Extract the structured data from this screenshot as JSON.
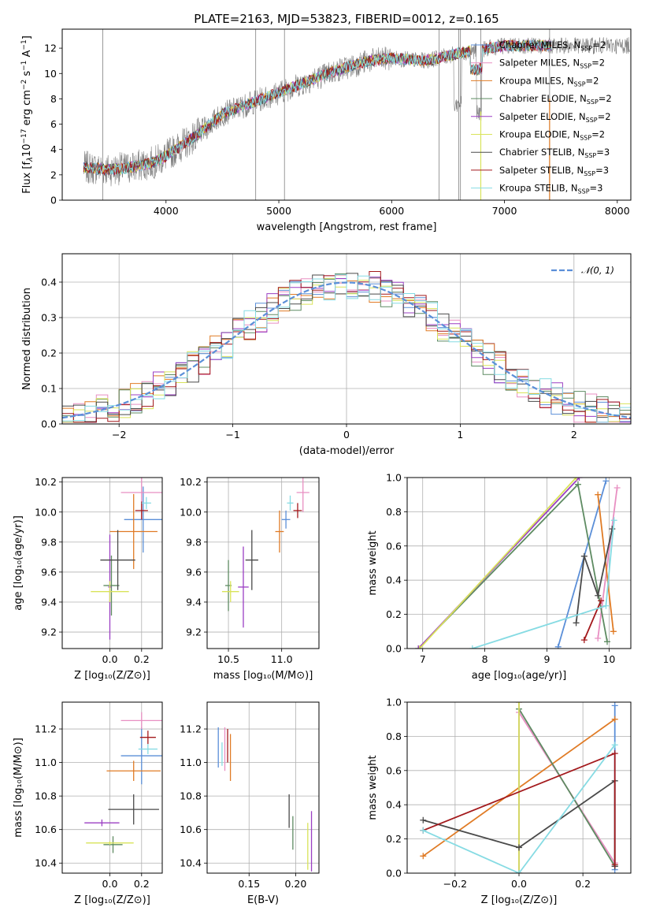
{
  "title": "PLATE=2163, MJD=53823, FIBERID=0012, z=0.165",
  "colors": {
    "Chabrier MILES": "#5b8fd8",
    "Salpeter MILES": "#e88fc2",
    "Kroupa MILES": "#e07b25",
    "Chabrier ELODIE": "#5e8b62",
    "Salpeter ELODIE": "#9b3fc3",
    "Kroupa ELODIE": "#d9e35a",
    "Chabrier STELIB": "#4a4a4a",
    "Salpeter STELIB": "#a3191c",
    "Kroupa STELIB": "#86dbe3",
    "data": "#808080",
    "normal": "#5b8fd8"
  },
  "chart_data": [
    {
      "type": "line",
      "name": "spectrum",
      "xlabel": "wavelength [Angstrom, rest frame]",
      "ylabel": "Flux [f",
      "ylabel_parts": [
        "λ",
        "10",
        "−17",
        " erg cm",
        "−2",
        " s",
        "−1",
        " A",
        "−1",
        "]"
      ],
      "xlim": [
        3080,
        8120
      ],
      "ylim": [
        0,
        13.5
      ],
      "xticks": [
        "4000",
        "5000",
        "6000",
        "7000",
        "8000"
      ],
      "yticks": [
        "0",
        "2",
        "4",
        "6",
        "8",
        "10",
        "12"
      ],
      "legend": [
        {
          "base": "Chabrier MILES, N",
          "sub": "SSP",
          "tail": "=2"
        },
        {
          "base": "Salpeter MILES, N",
          "sub": "SSP",
          "tail": "=2"
        },
        {
          "base": "Kroupa MILES, N",
          "sub": "SSP",
          "tail": "=2"
        },
        {
          "base": "Chabrier ELODIE, N",
          "sub": "SSP",
          "tail": "=2"
        },
        {
          "base": "Salpeter ELODIE, N",
          "sub": "SSP",
          "tail": "=2"
        },
        {
          "base": "Kroupa ELODIE, N",
          "sub": "SSP",
          "tail": "=2"
        },
        {
          "base": "Chabrier STELIB, N",
          "sub": "SSP",
          "tail": "=3"
        },
        {
          "base": "Salpeter STELIB, N",
          "sub": "SSP",
          "tail": "=3"
        },
        {
          "base": "Kroupa STELIB, N",
          "sub": "SSP",
          "tail": "=3"
        }
      ],
      "legend_placement": "top-right",
      "continuum_x": [
        3270,
        3500,
        3700,
        3900,
        4000,
        4300,
        4500,
        5000,
        5500,
        5800,
        6000,
        6300,
        6600,
        7000,
        7400,
        7800,
        8100
      ],
      "continuum_y": [
        2.6,
        2.4,
        2.6,
        3.0,
        3.5,
        5.3,
        6.8,
        8.5,
        10.2,
        11.0,
        11.2,
        11.0,
        11.6,
        12.2,
        12.2,
        12.2,
        12.2
      ]
    },
    {
      "type": "histogram",
      "name": "residuals",
      "xlabel": "(data-model)/error",
      "ylabel": "Normed distribution",
      "xlim": [
        -2.5,
        2.5
      ],
      "ylim": [
        0,
        0.48
      ],
      "xticks": [
        "−2",
        "−1",
        "0",
        "1",
        "2"
      ],
      "yticks": [
        "0.0",
        "0.1",
        "0.2",
        "0.3",
        "0.4"
      ],
      "grid": true,
      "legend": [
        "𝒩(0, 1)"
      ],
      "legend_placement": "top-right",
      "bin_width": 0.1
    },
    {
      "type": "scatter",
      "name": "age-vs-Z",
      "xlabel": "Z [log₁₀(Z/Z⊙)]",
      "ylabel": "age  [log₁₀(age/yr)]",
      "xlim": [
        -0.3,
        0.33
      ],
      "ylim": [
        9.09,
        10.23
      ],
      "xticks": [
        "0.0",
        "0.2"
      ],
      "yticks": [
        "9.2",
        "9.4",
        "9.6",
        "9.8",
        "10.0",
        "10.2"
      ],
      "grid": true,
      "points": [
        {
          "series": "Chabrier MILES",
          "x": 0.21,
          "y": 9.95,
          "xerr": 0.12,
          "yerr": 0.22
        },
        {
          "series": "Salpeter MILES",
          "x": 0.2,
          "y": 10.13,
          "xerr": 0.13,
          "yerr": 0.18
        },
        {
          "series": "Kroupa MILES",
          "x": 0.15,
          "y": 9.87,
          "xerr": 0.15,
          "yerr": 0.25
        },
        {
          "series": "Chabrier ELODIE",
          "x": 0.01,
          "y": 9.51,
          "xerr": 0.05,
          "yerr": 0.2
        },
        {
          "series": "Salpeter ELODIE",
          "x": 0.0,
          "y": 9.5,
          "xerr": 0.01,
          "yerr": 0.35
        },
        {
          "series": "Kroupa ELODIE",
          "x": 0.0,
          "y": 9.47,
          "xerr": 0.12,
          "yerr": 0.07
        },
        {
          "series": "Chabrier STELIB",
          "x": 0.05,
          "y": 9.68,
          "xerr": 0.11,
          "yerr": 0.2
        },
        {
          "series": "Salpeter STELIB",
          "x": 0.2,
          "y": 10.01,
          "xerr": 0.04,
          "yerr": 0.06
        },
        {
          "series": "Kroupa STELIB",
          "x": 0.23,
          "y": 10.06,
          "xerr": 0.03,
          "yerr": 0.04
        }
      ]
    },
    {
      "type": "scatter",
      "name": "age-vs-mass",
      "xlabel": "mass [log₁₀(M/M⊙)]",
      "ylabel": "",
      "xlim": [
        10.3,
        11.35
      ],
      "ylim": [
        9.09,
        10.23
      ],
      "xticks": [
        "10.5",
        "11.0"
      ],
      "yticks": [
        "9.2",
        "9.4",
        "9.6",
        "9.8",
        "10.0",
        "10.2"
      ],
      "grid": true,
      "points": [
        {
          "series": "Chabrier MILES",
          "x": 11.04,
          "y": 9.95,
          "xerr": 0.04,
          "yerr": 0.06
        },
        {
          "series": "Salpeter MILES",
          "x": 11.2,
          "y": 10.13,
          "xerr": 0.06,
          "yerr": 0.13
        },
        {
          "series": "Kroupa MILES",
          "x": 10.98,
          "y": 9.87,
          "xerr": 0.04,
          "yerr": 0.14
        },
        {
          "series": "Chabrier ELODIE",
          "x": 10.5,
          "y": 9.51,
          "xerr": 0.03,
          "yerr": 0.17
        },
        {
          "series": "Salpeter ELODIE",
          "x": 10.64,
          "y": 9.5,
          "xerr": 0.05,
          "yerr": 0.27
        },
        {
          "series": "Kroupa ELODIE",
          "x": 10.52,
          "y": 9.47,
          "xerr": 0.08,
          "yerr": 0.07
        },
        {
          "series": "Chabrier STELIB",
          "x": 10.72,
          "y": 9.68,
          "xerr": 0.06,
          "yerr": 0.2
        },
        {
          "series": "Salpeter STELIB",
          "x": 11.15,
          "y": 10.01,
          "xerr": 0.04,
          "yerr": 0.05
        },
        {
          "series": "Kroupa STELIB",
          "x": 11.08,
          "y": 10.06,
          "xerr": 0.03,
          "yerr": 0.05
        }
      ]
    },
    {
      "type": "line",
      "name": "mass-weight-vs-age",
      "xlabel": "age  [log₁₀(age/yr)]",
      "ylabel": "mass weight",
      "xlim": [
        6.75,
        10.35
      ],
      "ylim": [
        0,
        1
      ],
      "xticks": [
        "7",
        "8",
        "9",
        "10"
      ],
      "yticks": [
        "0.0",
        "0.2",
        "0.4",
        "0.6",
        "0.8",
        "1.0"
      ],
      "grid": true,
      "series": [
        {
          "name": "Chabrier MILES",
          "x": [
            9.18,
            9.95
          ],
          "y": [
            0.01,
            0.98
          ]
        },
        {
          "name": "Salpeter MILES",
          "x": [
            9.82,
            10.13
          ],
          "y": [
            0.06,
            0.94
          ]
        },
        {
          "name": "Kroupa MILES",
          "x": [
            9.82,
            10.07
          ],
          "y": [
            0.9,
            0.1
          ]
        },
        {
          "name": "Chabrier ELODIE",
          "x": [
            6.93,
            9.5,
            9.97
          ],
          "y": [
            0.0,
            0.96,
            0.04
          ]
        },
        {
          "name": "Salpeter ELODIE",
          "x": [
            6.93,
            9.52
          ],
          "y": [
            0.0,
            1.0
          ]
        },
        {
          "name": "Kroupa ELODIE",
          "x": [
            6.95,
            9.47
          ],
          "y": [
            0.0,
            1.0
          ]
        },
        {
          "name": "Chabrier STELIB",
          "x": [
            9.47,
            9.6,
            9.82,
            10.05
          ],
          "y": [
            0.15,
            0.54,
            0.31,
            0.7
          ]
        },
        {
          "name": "Salpeter STELIB",
          "x": [
            9.6,
            9.87
          ],
          "y": [
            0.05,
            0.28
          ]
        },
        {
          "name": "Kroupa STELIB",
          "x": [
            7.8,
            9.95,
            10.08
          ],
          "y": [
            0.0,
            0.25,
            0.75
          ]
        }
      ]
    },
    {
      "type": "scatter",
      "name": "mass-vs-Z",
      "xlabel": "Z [log₁₀(Z/Z⊙)]",
      "ylabel": "mass [log₁₀(M/M⊙)]",
      "xlim": [
        -0.3,
        0.33
      ],
      "ylim": [
        10.34,
        11.36
      ],
      "xticks": [
        "0.0",
        "0.2"
      ],
      "yticks": [
        "10.4",
        "10.6",
        "10.8",
        "11.0",
        "11.2"
      ],
      "grid": true,
      "points": [
        {
          "series": "Chabrier MILES",
          "x": 0.2,
          "y": 11.04,
          "xerr": 0.13,
          "yerr": 0.17
        },
        {
          "series": "Salpeter MILES",
          "x": 0.2,
          "y": 11.25,
          "xerr": 0.13,
          "yerr": 0.05
        },
        {
          "series": "Kroupa MILES",
          "x": 0.15,
          "y": 10.95,
          "xerr": 0.17,
          "yerr": 0.06
        },
        {
          "series": "Chabrier ELODIE",
          "x": 0.02,
          "y": 10.51,
          "xerr": 0.06,
          "yerr": 0.05
        },
        {
          "series": "Salpeter ELODIE",
          "x": -0.05,
          "y": 10.64,
          "xerr": 0.11,
          "yerr": 0.02
        },
        {
          "series": "Kroupa ELODIE",
          "x": 0.0,
          "y": 10.52,
          "xerr": 0.15,
          "yerr": 0.01
        },
        {
          "series": "Chabrier STELIB",
          "x": 0.15,
          "y": 10.72,
          "xerr": 0.16,
          "yerr": 0.09
        },
        {
          "series": "Salpeter STELIB",
          "x": 0.24,
          "y": 11.15,
          "xerr": 0.05,
          "yerr": 0.04
        },
        {
          "series": "Kroupa STELIB",
          "x": 0.24,
          "y": 11.08,
          "xerr": 0.06,
          "yerr": 0.03
        }
      ]
    },
    {
      "type": "scatter",
      "name": "mass-vs-EBV",
      "xlabel": "E(B-V)",
      "ylabel": "",
      "xlim": [
        0.105,
        0.225
      ],
      "ylim": [
        10.34,
        11.36
      ],
      "xticks": [
        "0.15",
        "0.20"
      ],
      "yticks": [
        "10.4",
        "10.6",
        "10.8",
        "11.0",
        "11.2"
      ],
      "grid": true,
      "points": [
        {
          "series": "Chabrier MILES",
          "x": 0.117,
          "y": 11.09,
          "yerr": 0.12
        },
        {
          "series": "Salpeter MILES",
          "x": 0.124,
          "y": 11.08,
          "yerr": 0.13
        },
        {
          "series": "Kroupa MILES",
          "x": 0.13,
          "y": 11.03,
          "yerr": 0.14
        },
        {
          "series": "Chabrier ELODIE",
          "x": 0.197,
          "y": 10.58,
          "yerr": 0.1
        },
        {
          "series": "Salpeter ELODIE",
          "x": 0.217,
          "y": 10.53,
          "yerr": 0.18
        },
        {
          "series": "Kroupa ELODIE",
          "x": 0.213,
          "y": 10.5,
          "yerr": 0.14
        },
        {
          "series": "Chabrier STELIB",
          "x": 0.193,
          "y": 10.71,
          "yerr": 0.1
        },
        {
          "series": "Salpeter STELIB",
          "x": 0.127,
          "y": 11.1,
          "yerr": 0.1
        },
        {
          "series": "Kroupa STELIB",
          "x": 0.121,
          "y": 11.05,
          "yerr": 0.07
        }
      ]
    },
    {
      "type": "line",
      "name": "mass-weight-vs-Z",
      "xlabel": "Z [log₁₀(Z/Z⊙)]",
      "ylabel": "mass weight",
      "xlim": [
        -0.35,
        0.35
      ],
      "ylim": [
        0,
        1
      ],
      "xticks": [
        "−0.2",
        "0.0",
        "0.2"
      ],
      "yticks": [
        "0.0",
        "0.2",
        "0.4",
        "0.6",
        "0.8",
        "1.0"
      ],
      "grid": true,
      "series": [
        {
          "name": "Chabrier MILES",
          "x": [
            0.3,
            0.3
          ],
          "y": [
            0.02,
            0.98
          ]
        },
        {
          "name": "Salpeter MILES",
          "x": [
            0.0,
            0.3
          ],
          "y": [
            0.94,
            0.06
          ]
        },
        {
          "name": "Kroupa MILES",
          "x": [
            -0.3,
            0.3
          ],
          "y": [
            0.1,
            0.9
          ]
        },
        {
          "name": "Chabrier ELODIE",
          "x": [
            0.0,
            0.3
          ],
          "y": [
            0.96,
            0.04
          ]
        },
        {
          "name": "Salpeter ELODIE",
          "x": [
            0.0,
            0.0
          ],
          "y": [
            0.0,
            1.0
          ]
        },
        {
          "name": "Kroupa ELODIE",
          "x": [
            0.0,
            0.0
          ],
          "y": [
            0.0,
            1.0
          ]
        },
        {
          "name": "Chabrier STELIB",
          "x": [
            -0.3,
            0.0,
            0.3,
            0.3
          ],
          "y": [
            0.31,
            0.15,
            0.54,
            0.04
          ]
        },
        {
          "name": "Salpeter STELIB",
          "x": [
            -0.3,
            0.3,
            0.3
          ],
          "y": [
            0.25,
            0.7,
            0.05
          ]
        },
        {
          "name": "Kroupa STELIB",
          "x": [
            -0.3,
            0.0,
            0.3
          ],
          "y": [
            0.25,
            0.0,
            0.75
          ]
        }
      ]
    }
  ]
}
